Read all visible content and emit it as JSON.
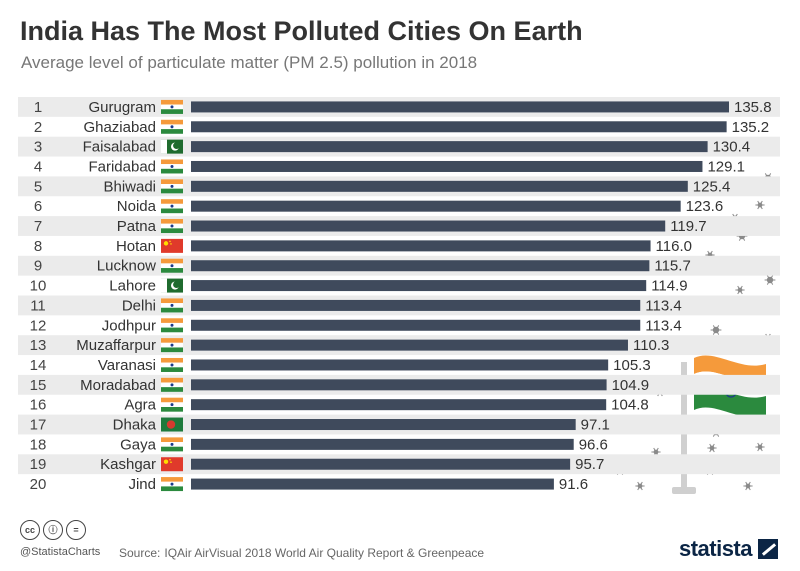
{
  "title": "India Has The Most Polluted Cities On Earth",
  "subtitle": "Average level of particulate matter (PM 2.5) pollution in 2018",
  "footer": {
    "handle": "@StatistaCharts",
    "source_label": "Source:",
    "source_text": "IQAir AirVisual 2018 World Air Quality Report & Greenpeace",
    "brand": "statista",
    "license_icons": [
      "cc-icon",
      "attribution-icon",
      "no-derivatives-icon"
    ]
  },
  "colors": {
    "bar": "#3f4a5c",
    "stripe": "#ebebeb",
    "text": "#333333",
    "india_saffron": "#f59a3b",
    "india_green": "#2b8a3e",
    "pakistan_green": "#1f6b2e",
    "china_red": "#e03a2b",
    "bangladesh_green": "#1e7a3c",
    "bangladesh_red": "#d63a2f"
  },
  "chart_data": {
    "type": "bar",
    "orientation": "horizontal",
    "title": "India Has The Most Polluted Cities On Earth",
    "subtitle": "Average level of particulate matter (PM 2.5) pollution in 2018",
    "xlim": [
      0,
      135.8
    ],
    "grid": false,
    "legend": "none",
    "ranks": [
      "1",
      "2",
      "3",
      "4",
      "5",
      "6",
      "7",
      "8",
      "9",
      "10",
      "11",
      "12",
      "13",
      "14",
      "15",
      "16",
      "17",
      "18",
      "19",
      "20"
    ],
    "categories": [
      "Gurugram",
      "Ghaziabad",
      "Faisalabad",
      "Faridabad",
      "Bhiwadi",
      "Noida",
      "Patna",
      "Hotan",
      "Lucknow",
      "Lahore",
      "Delhi",
      "Jodhpur",
      "Muzaffarpur",
      "Varanasi",
      "Moradabad",
      "Agra",
      "Dhaka",
      "Gaya",
      "Kashgar",
      "Jind"
    ],
    "flags": [
      "india",
      "india",
      "pakistan",
      "india",
      "india",
      "india",
      "india",
      "china",
      "india",
      "pakistan",
      "india",
      "india",
      "india",
      "india",
      "india",
      "india",
      "bangladesh",
      "india",
      "china",
      "india"
    ],
    "values": [
      135.8,
      135.2,
      130.4,
      129.1,
      125.4,
      123.6,
      119.7,
      116.0,
      115.7,
      114.9,
      113.4,
      113.4,
      110.3,
      105.3,
      104.9,
      104.8,
      97.1,
      96.6,
      95.7,
      91.6
    ],
    "value_labels": [
      "135.8",
      "135.2",
      "130.4",
      "129.1",
      "125.4",
      "123.6",
      "119.7",
      "116.0",
      "115.7",
      "114.9",
      "113.4",
      "113.4",
      "110.3",
      "105.3",
      "104.9",
      "104.8",
      "97.1",
      "96.6",
      "95.7",
      "91.6"
    ]
  }
}
